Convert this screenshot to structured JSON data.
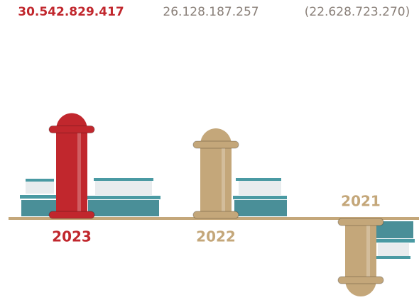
{
  "chart_data": {
    "type": "bar",
    "categories": [
      "2023",
      "2022",
      "2021"
    ],
    "values": [
      30542829417,
      26128187257,
      -22628723270
    ],
    "value_labels": [
      "30.542.829.417",
      "26.128.187.257",
      "(22.628.723.270)"
    ],
    "colors": [
      "#c1272d",
      "#c4a77a",
      "#c4a77a"
    ]
  }
}
